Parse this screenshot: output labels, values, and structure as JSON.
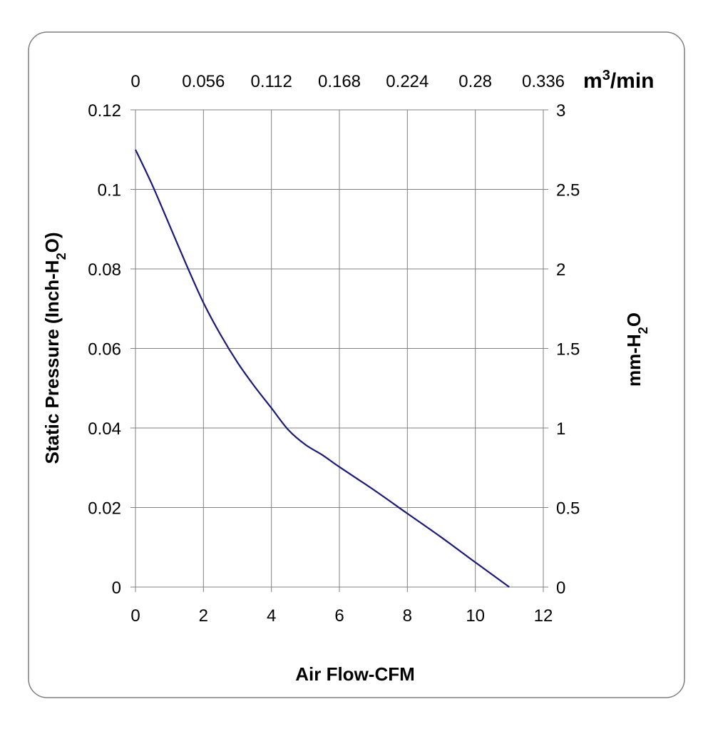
{
  "chart_data": {
    "type": "line",
    "title": "",
    "xlabel": "Air Flow-CFM",
    "ylabel": "Static Pressure (Inch-H2O)",
    "ylabel_parts": {
      "pre": "Static Pressure (Inch-H",
      "sub": "2",
      "post": "O)"
    },
    "y2label_parts": {
      "pre": "mm-H",
      "sub": "2",
      "post": "O"
    },
    "x2label_parts": {
      "pre": "m",
      "sup": "3",
      "post": "/min"
    },
    "xlim": [
      0,
      12
    ],
    "ylim": [
      0,
      0.12
    ],
    "y2lim": [
      0,
      3
    ],
    "x_ticks": [
      "0",
      "2",
      "4",
      "6",
      "8",
      "10",
      "12"
    ],
    "y_ticks": [
      "0",
      "0.02",
      "0.04",
      "0.06",
      "0.08",
      "0.1",
      "0.12"
    ],
    "y2_ticks": [
      "0",
      "0.5",
      "1",
      "1.5",
      "2",
      "2.5",
      "3"
    ],
    "x2_ticks": [
      "0",
      "0.056",
      "0.112",
      "0.168",
      "0.224",
      "0.28",
      "0.336"
    ],
    "grid": true,
    "series": [
      {
        "color": "#1a1a7a",
        "x": [
          0,
          0.5,
          1,
          1.5,
          2,
          2.5,
          3,
          3.5,
          4,
          4.5,
          5,
          5.5,
          6,
          7,
          8,
          9,
          10,
          11
        ],
        "y": [
          0.11,
          0.101,
          0.091,
          0.081,
          0.0715,
          0.0635,
          0.0565,
          0.0505,
          0.045,
          0.0395,
          0.0358,
          0.0332,
          0.0302,
          0.0245,
          0.0185,
          0.0125,
          0.0062,
          0.0
        ]
      }
    ]
  }
}
